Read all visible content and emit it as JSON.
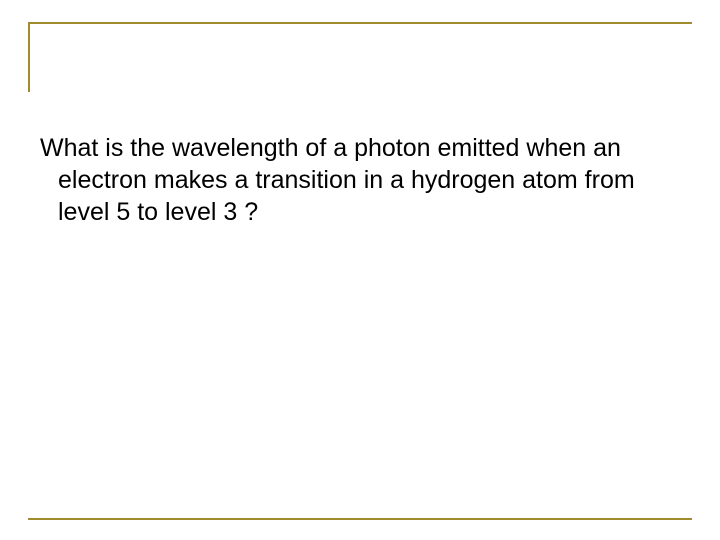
{
  "slide": {
    "body_text": "What is the wavelength of a photon emitted when an electron makes a transition in a hydrogen atom from level 5 to level 3 ?"
  },
  "style": {
    "frame_color": "#a08c2c",
    "text_color": "#000000",
    "background_color": "#ffffff",
    "body_fontsize": 25
  }
}
